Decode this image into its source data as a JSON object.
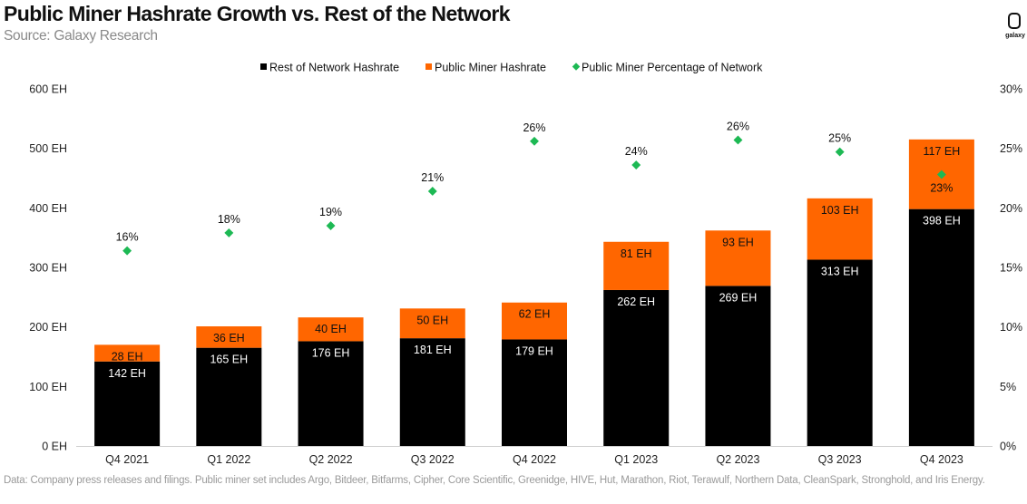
{
  "header": {
    "title": "Public Miner Hashrate Growth vs. Rest of the Network",
    "subtitle": "Source: Galaxy Research",
    "logo_text": "galaxy"
  },
  "footnote": "Data: Company press releases and filings. Public miner set includes Argo, Bitdeer, Bitfarms, Cipher, Core Scientific, Greenidge, HIVE, Hut, Marathon, Riot, Terawulf, Northern Data, CleanSpark, Stronghold, and Iris Energy.",
  "colors": {
    "rest": "#000000",
    "public": "#ff6600",
    "percentage": "#1db954"
  },
  "chart_data": {
    "type": "bar",
    "stacked": true,
    "categories": [
      "Q4 2021",
      "Q1 2022",
      "Q2 2022",
      "Q3 2022",
      "Q4 2022",
      "Q1 2023",
      "Q2 2023",
      "Q3 2023",
      "Q4 2023"
    ],
    "series": [
      {
        "name": "Rest of Network Hashrate",
        "axis": "left",
        "values": [
          142,
          165,
          176,
          181,
          179,
          262,
          269,
          313,
          398
        ],
        "labels": [
          "142 EH",
          "165 EH",
          "176 EH",
          "181 EH",
          "179 EH",
          "262 EH",
          "269 EH",
          "313 EH",
          "398 EH"
        ]
      },
      {
        "name": "Public Miner Hashrate",
        "axis": "left",
        "values": [
          28,
          36,
          40,
          50,
          62,
          81,
          93,
          103,
          117
        ],
        "labels": [
          "28 EH",
          "36 EH",
          "40 EH",
          "50 EH",
          "62 EH",
          "81 EH",
          "93 EH",
          "103 EH",
          "117 EH"
        ]
      },
      {
        "name": "Public Miner Percentage of Network",
        "axis": "right",
        "type": "scatter",
        "values": [
          16.4,
          17.9,
          18.5,
          21.4,
          25.6,
          23.6,
          25.7,
          24.7,
          22.8
        ],
        "labels": [
          "16%",
          "18%",
          "19%",
          "21%",
          "26%",
          "24%",
          "26%",
          "25%",
          "23%"
        ]
      }
    ],
    "y_left": {
      "min": 0,
      "max": 600,
      "ticks": [
        0,
        100,
        200,
        300,
        400,
        500,
        600
      ],
      "tick_labels": [
        "0 EH",
        "100 EH",
        "200 EH",
        "300 EH",
        "400 EH",
        "500 EH",
        "600 EH"
      ]
    },
    "y_right": {
      "min": 0,
      "max": 30,
      "ticks": [
        0,
        5,
        10,
        15,
        20,
        25,
        30
      ],
      "tick_labels": [
        "0%",
        "5%",
        "10%",
        "15%",
        "20%",
        "25%",
        "30%"
      ]
    },
    "legend": "top-center"
  }
}
